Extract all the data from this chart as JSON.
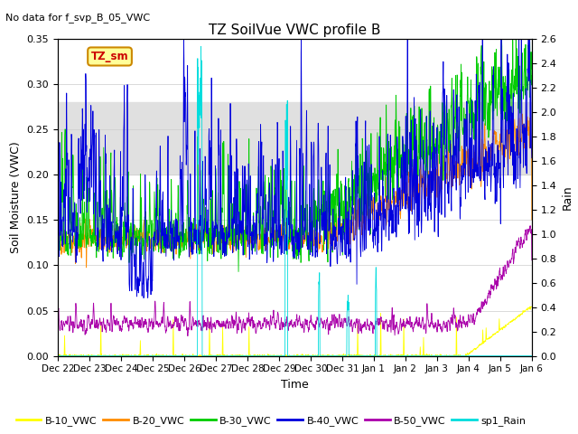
{
  "title": "TZ SoilVue VWC profile B",
  "subtitle": "No data for f_svp_B_05_VWC",
  "xlabel": "Time",
  "ylabel_left": "Soil Moisture (VWC)",
  "ylabel_right": "Rain",
  "ylim_left": [
    0.0,
    0.35
  ],
  "ylim_right": [
    0.0,
    2.6
  ],
  "yticks_left": [
    0.0,
    0.05,
    0.1,
    0.15,
    0.2,
    0.25,
    0.3,
    0.35
  ],
  "yticks_right": [
    0.0,
    0.2,
    0.4,
    0.6,
    0.8,
    1.0,
    1.2,
    1.4,
    1.6,
    1.8,
    2.0,
    2.2,
    2.4,
    2.6
  ],
  "colors": {
    "B10": "#ffff00",
    "B20": "#ff8c00",
    "B30": "#00cc00",
    "B40": "#0000dd",
    "B50": "#aa00aa",
    "Rain": "#00dddd"
  },
  "legend_labels": [
    "B-10_VWC",
    "B-20_VWC",
    "B-30_VWC",
    "B-40_VWC",
    "B-50_VWC",
    "sp1_Rain"
  ],
  "annotation_box": {
    "text": "TZ_sm",
    "color": "#cc0000",
    "bg": "#ffff99"
  },
  "shaded_region": [
    0.2,
    0.28
  ],
  "background_color": "#ffffff",
  "grid_color": "#cccccc",
  "n_points": 2160,
  "figsize": [
    6.4,
    4.8
  ],
  "dpi": 100
}
